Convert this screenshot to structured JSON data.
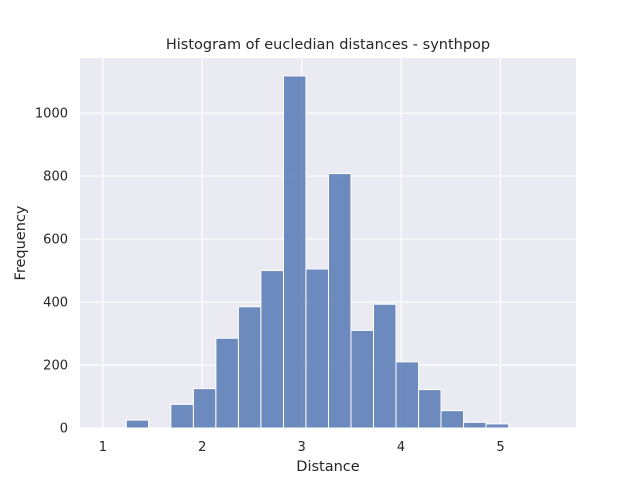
{
  "chart_data": {
    "type": "bar",
    "title": "Histogram of eucledian distances - synthpop",
    "xlabel": "Distance",
    "ylabel": "Frequency",
    "xlim": [
      0.77,
      5.76
    ],
    "ylim": [
      0,
      1175
    ],
    "xticks": [
      1,
      2,
      3,
      4,
      5
    ],
    "yticks": [
      0,
      200,
      400,
      600,
      800,
      1000
    ],
    "grid": true,
    "bar_color": "#4c72b0",
    "plot_background": "#eaeaf2",
    "bins": [
      {
        "x0": 1.236,
        "x1": 1.46,
        "count": 25
      },
      {
        "x0": 1.46,
        "x1": 1.684,
        "count": 0
      },
      {
        "x0": 1.684,
        "x1": 1.911,
        "count": 75
      },
      {
        "x0": 1.911,
        "x1": 2.137,
        "count": 125
      },
      {
        "x0": 2.137,
        "x1": 2.364,
        "count": 285
      },
      {
        "x0": 2.364,
        "x1": 2.59,
        "count": 385
      },
      {
        "x0": 2.59,
        "x1": 2.817,
        "count": 500
      },
      {
        "x0": 2.817,
        "x1": 3.043,
        "count": 1118
      },
      {
        "x0": 3.043,
        "x1": 3.27,
        "count": 505
      },
      {
        "x0": 3.27,
        "x1": 3.496,
        "count": 808
      },
      {
        "x0": 3.496,
        "x1": 3.723,
        "count": 310
      },
      {
        "x0": 3.723,
        "x1": 3.949,
        "count": 393
      },
      {
        "x0": 3.949,
        "x1": 4.176,
        "count": 210
      },
      {
        "x0": 4.176,
        "x1": 4.402,
        "count": 122
      },
      {
        "x0": 4.402,
        "x1": 4.629,
        "count": 55
      },
      {
        "x0": 4.629,
        "x1": 4.855,
        "count": 18
      },
      {
        "x0": 4.855,
        "x1": 5.082,
        "count": 13
      }
    ]
  }
}
